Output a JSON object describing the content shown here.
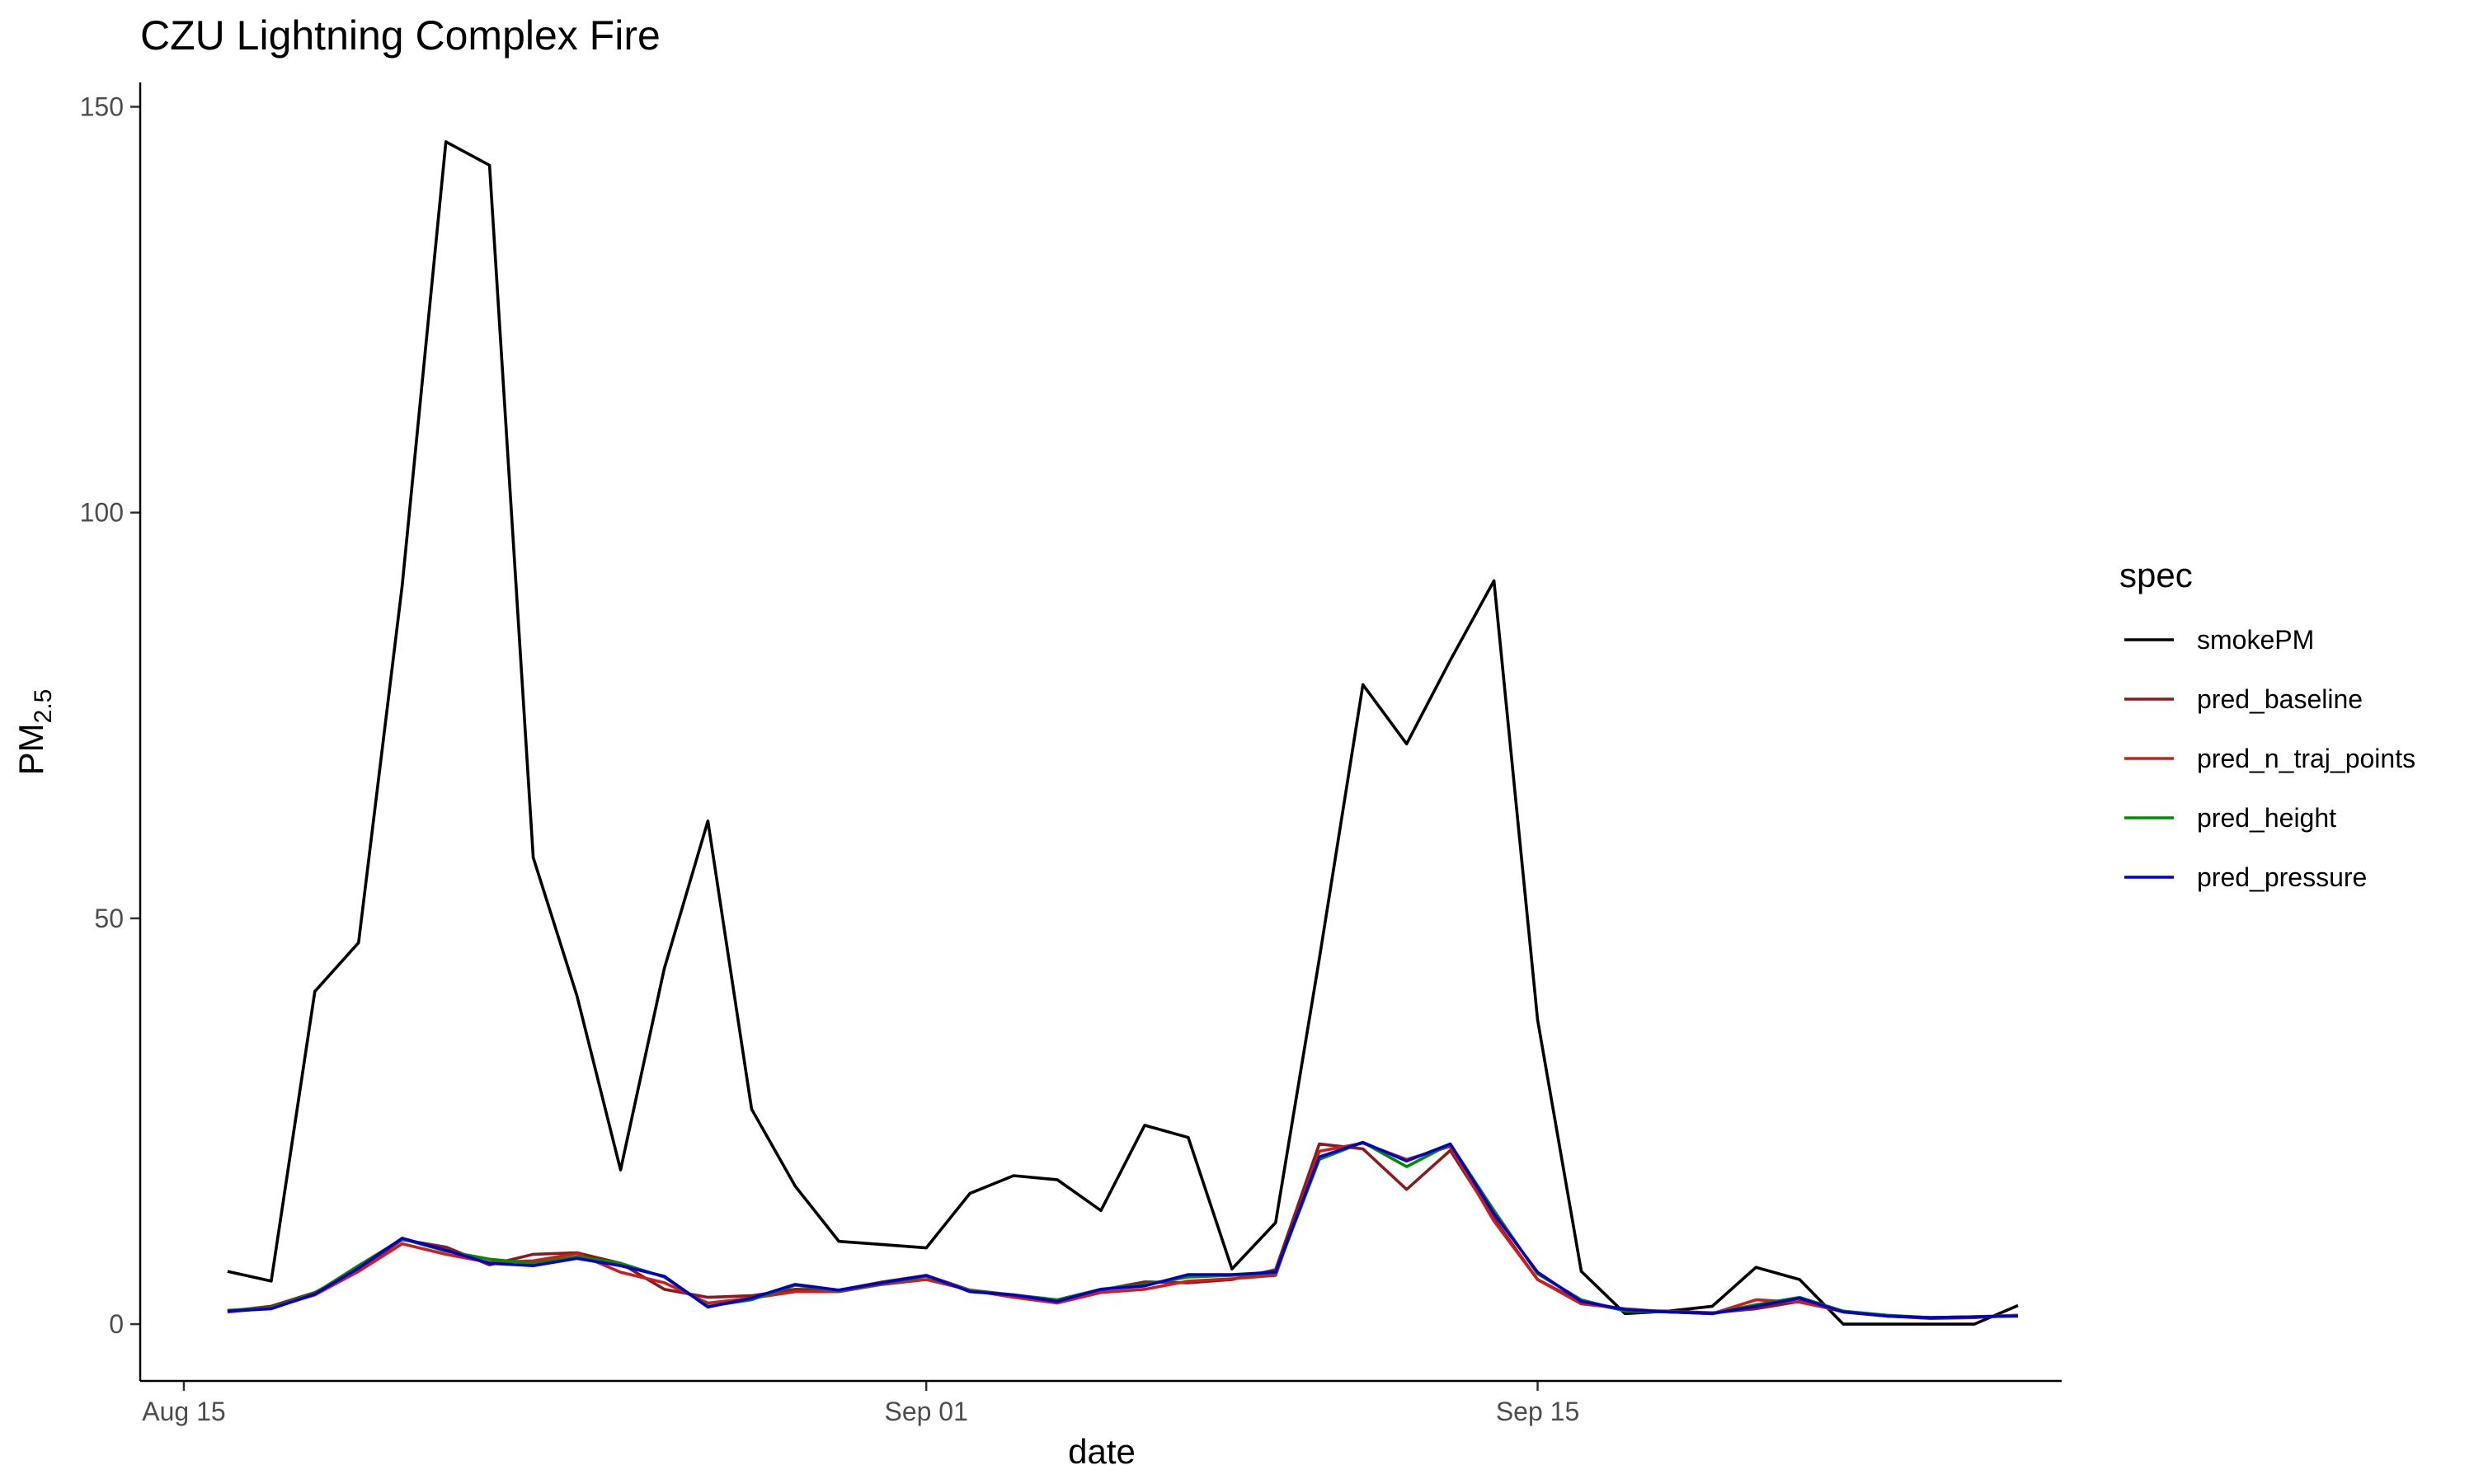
{
  "chart_data": {
    "type": "line",
    "title": "CZU Lightning Complex Fire",
    "xlabel": "date",
    "ylabel_main": "PM",
    "ylabel_sub": "2.5",
    "x_ticks": [
      {
        "date": "2020-08-15",
        "label": "Aug 15"
      },
      {
        "date": "2020-09-01",
        "label": "Sep 01"
      },
      {
        "date": "2020-09-15",
        "label": "Sep 15"
      }
    ],
    "y_ticks": [
      0,
      50,
      100,
      150
    ],
    "xlim": [
      "2020-08-14",
      "2020-09-27"
    ],
    "ylim": [
      -7,
      153
    ],
    "grid": false,
    "legend": {
      "title": "spec",
      "position": "right"
    },
    "x": [
      "2020-08-16",
      "2020-08-17",
      "2020-08-18",
      "2020-08-19",
      "2020-08-20",
      "2020-08-21",
      "2020-08-22",
      "2020-08-23",
      "2020-08-24",
      "2020-08-25",
      "2020-08-26",
      "2020-08-27",
      "2020-08-28",
      "2020-08-29",
      "2020-08-30",
      "2020-08-31",
      "2020-09-01",
      "2020-09-02",
      "2020-09-03",
      "2020-09-04",
      "2020-09-05",
      "2020-09-06",
      "2020-09-07",
      "2020-09-08",
      "2020-09-09",
      "2020-09-10",
      "2020-09-11",
      "2020-09-12",
      "2020-09-13",
      "2020-09-14",
      "2020-09-15",
      "2020-09-16",
      "2020-09-17",
      "2020-09-18",
      "2020-09-19",
      "2020-09-20",
      "2020-09-21",
      "2020-09-22",
      "2020-09-23",
      "2020-09-24",
      "2020-09-25",
      "2020-09-26"
    ],
    "series": [
      {
        "name": "smokePM",
        "color": "#000000",
        "values": [
          6.5,
          5.3,
          41,
          47,
          91,
          145.7,
          142.8,
          57.5,
          40.5,
          19,
          43.8,
          62,
          26.5,
          17,
          10.2,
          9.8,
          9.4,
          16.1,
          18.3,
          17.8,
          14,
          24.5,
          23,
          6.8,
          12.5,
          45,
          78.8,
          71.5,
          81.8,
          91.6,
          37.5,
          6.5,
          1.3,
          1.6,
          2.2,
          7,
          5.5,
          0,
          0,
          0,
          0,
          2.3
        ]
      },
      {
        "name": "pred_baseline",
        "color": "#8B1A1A",
        "values": [
          1.6,
          2.2,
          3.9,
          6.8,
          10.4,
          9.5,
          7.3,
          8.6,
          8.8,
          7.5,
          4.3,
          3.3,
          3.5,
          4.3,
          4.2,
          5.2,
          6.0,
          4.2,
          3.6,
          2.9,
          4.2,
          5.2,
          5.1,
          5.5,
          6.7,
          22.2,
          21.6,
          16.6,
          21.4,
          13.0,
          5.5,
          2.7,
          1.7,
          1.6,
          1.4,
          1.9,
          2.8,
          1.5,
          1.0,
          0.7,
          0.8,
          1.1
        ]
      },
      {
        "name": "pred_n_traj_points",
        "color": "#D01C1C",
        "values": [
          1.5,
          2.0,
          3.6,
          6.5,
          9.9,
          8.6,
          7.6,
          7.8,
          8.7,
          6.4,
          5.1,
          2.6,
          3.2,
          4.0,
          4.0,
          4.9,
          5.5,
          4.2,
          3.3,
          2.6,
          3.9,
          4.3,
          5.3,
          5.6,
          6.0,
          21.3,
          22.3,
          20.3,
          21.9,
          12.7,
          5.5,
          2.5,
          1.9,
          1.5,
          1.3,
          3.0,
          2.7,
          1.6,
          1.0,
          0.8,
          0.9,
          1.1
        ]
      },
      {
        "name": "pred_height",
        "color": "#008B00",
        "values": [
          1.7,
          2.0,
          3.8,
          7.2,
          10.5,
          9.0,
          8.0,
          7.5,
          8.3,
          7.5,
          5.8,
          2.2,
          3.0,
          4.8,
          4.1,
          5.0,
          5.9,
          4.1,
          3.6,
          3.0,
          4.3,
          4.9,
          5.8,
          6.0,
          6.3,
          20.3,
          22.4,
          19.4,
          22.2,
          14.0,
          6.2,
          3.0,
          1.6,
          1.5,
          1.3,
          2.4,
          3.3,
          1.6,
          1.1,
          0.8,
          0.9,
          1.0
        ]
      },
      {
        "name": "pred_pressure",
        "color": "#0000CC",
        "values": [
          1.6,
          1.9,
          3.7,
          6.9,
          10.6,
          9.1,
          7.5,
          7.2,
          8.1,
          7.2,
          5.9,
          2.1,
          3.2,
          4.9,
          4.2,
          5.1,
          6.0,
          4.0,
          3.6,
          2.8,
          4.3,
          4.7,
          6.1,
          6.1,
          6.4,
          20.6,
          22.4,
          20.1,
          22.2,
          13.6,
          6.4,
          2.8,
          1.8,
          1.5,
          1.3,
          2.2,
          3.2,
          1.5,
          1.0,
          0.8,
          0.9,
          1.0
        ]
      }
    ]
  }
}
